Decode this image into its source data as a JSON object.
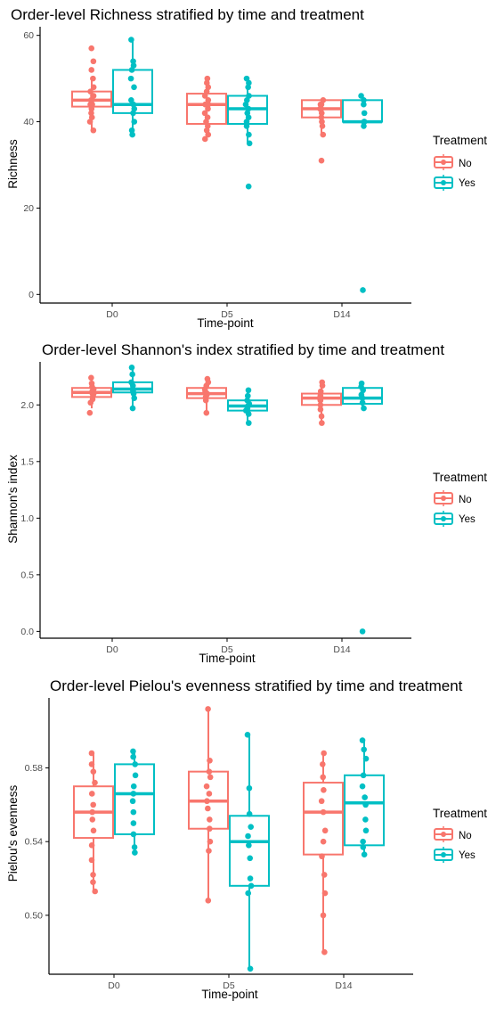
{
  "colors": {
    "No": "#f8766d",
    "Yes": "#00bfc4",
    "axis": "#000000",
    "tick_text": "#4d4d4d"
  },
  "chart_data": [
    {
      "type": "boxplot",
      "title": "Order-level Richness stratified by time and treatment",
      "xlabel": "Time-point",
      "ylabel": "Richness",
      "categories": [
        "D0",
        "D5",
        "D14"
      ],
      "ylim": [
        -2,
        62
      ],
      "yticks": [
        0,
        20,
        40,
        60
      ],
      "ytick_labels": [
        "0",
        "20",
        "40",
        "60"
      ],
      "grid": false,
      "legend": {
        "title": "Treatment",
        "entries": [
          "No",
          "Yes"
        ],
        "position": "right"
      },
      "series": [
        {
          "name": "No",
          "groups": [
            {
              "q1": 43.5,
              "median": 45,
              "q3": 47,
              "whisker_low": 38,
              "whisker_high": 50,
              "points": [
                38,
                40,
                41,
                42,
                43,
                44,
                44,
                45,
                45,
                46,
                46,
                47,
                48,
                50,
                52,
                54,
                57
              ]
            },
            {
              "q1": 39.5,
              "median": 44,
              "q3": 46.5,
              "whisker_low": 36,
              "whisker_high": 50,
              "points": [
                36,
                37,
                38,
                39,
                40,
                41,
                42,
                43,
                44,
                44,
                45,
                46,
                47,
                48,
                49,
                50
              ]
            },
            {
              "q1": 41,
              "median": 43,
              "q3": 45,
              "whisker_low": 37,
              "whisker_high": 45,
              "points": [
                31,
                37,
                39,
                40,
                41,
                42,
                43,
                43,
                44,
                44,
                45
              ]
            }
          ]
        },
        {
          "name": "Yes",
          "groups": [
            {
              "q1": 42,
              "median": 44,
              "q3": 52,
              "whisker_low": 37,
              "whisker_high": 59,
              "points": [
                37,
                38,
                40,
                42,
                43,
                44,
                45,
                48,
                50,
                52,
                53,
                54,
                59
              ]
            },
            {
              "q1": 39.5,
              "median": 43,
              "q3": 46,
              "whisker_low": 35,
              "whisker_high": 50,
              "points": [
                25,
                35,
                37,
                39,
                40,
                41,
                42,
                43,
                44,
                45,
                46,
                48,
                49,
                50
              ]
            },
            {
              "q1": 40,
              "median": 40,
              "q3": 45,
              "whisker_low": 39,
              "whisker_high": 46,
              "points": [
                1,
                39,
                40,
                40,
                42,
                44,
                45,
                46
              ]
            }
          ]
        }
      ]
    },
    {
      "type": "boxplot",
      "title": "Order-level Shannon's index stratified by time and treatment",
      "xlabel": "Time-point",
      "ylabel": "Shannon's index",
      "categories": [
        "D0",
        "D5",
        "D14"
      ],
      "ylim": [
        -0.06,
        2.38
      ],
      "yticks": [
        0,
        0.5,
        1.0,
        1.5,
        2.0
      ],
      "ytick_labels": [
        "0.0",
        "0.5",
        "1.0",
        "1.5",
        "2.0"
      ],
      "grid": false,
      "legend": {
        "title": "Treatment",
        "entries": [
          "No",
          "Yes"
        ],
        "position": "right"
      },
      "series": [
        {
          "name": "No",
          "groups": [
            {
              "q1": 2.07,
              "median": 2.11,
              "q3": 2.15,
              "whisker_low": 1.97,
              "whisker_high": 2.24,
              "points": [
                1.93,
                2.02,
                2.05,
                2.08,
                2.1,
                2.11,
                2.12,
                2.14,
                2.16,
                2.19,
                2.24
              ]
            },
            {
              "q1": 2.06,
              "median": 2.1,
              "q3": 2.15,
              "whisker_low": 1.93,
              "whisker_high": 2.23,
              "points": [
                1.93,
                2.04,
                2.07,
                2.09,
                2.1,
                2.12,
                2.14,
                2.17,
                2.2,
                2.23
              ]
            },
            {
              "q1": 2.0,
              "median": 2.06,
              "q3": 2.1,
              "whisker_low": 1.84,
              "whisker_high": 2.2,
              "points": [
                1.84,
                1.9,
                1.96,
                2.0,
                2.04,
                2.06,
                2.08,
                2.12,
                2.17,
                2.2
              ]
            }
          ]
        },
        {
          "name": "Yes",
          "groups": [
            {
              "q1": 2.11,
              "median": 2.14,
              "q3": 2.2,
              "whisker_low": 1.97,
              "whisker_high": 2.33,
              "points": [
                1.97,
                2.06,
                2.1,
                2.12,
                2.14,
                2.17,
                2.2,
                2.27,
                2.33
              ]
            },
            {
              "q1": 1.95,
              "median": 1.99,
              "q3": 2.04,
              "whisker_low": 1.84,
              "whisker_high": 2.13,
              "points": [
                1.84,
                1.92,
                1.95,
                1.97,
                1.99,
                2.01,
                2.04,
                2.08,
                2.13
              ]
            },
            {
              "q1": 2.01,
              "median": 2.06,
              "q3": 2.15,
              "whisker_low": 1.97,
              "whisker_high": 2.19,
              "points": [
                0.0,
                1.97,
                2.02,
                2.06,
                2.09,
                2.13,
                2.16,
                2.19
              ]
            }
          ]
        }
      ]
    },
    {
      "type": "boxplot",
      "title": "Order-level Pielou's evenness stratified by time and treatment",
      "xlabel": "Time-point",
      "ylabel": "Pielou's evenness",
      "categories": [
        "D0",
        "D5",
        "D14"
      ],
      "ylim": [
        0.468,
        0.618
      ],
      "yticks": [
        0.5,
        0.54,
        0.58
      ],
      "ytick_labels": [
        "0.50",
        "0.54",
        "0.58"
      ],
      "grid": false,
      "legend": {
        "title": "Treatment",
        "entries": [
          "No",
          "Yes"
        ],
        "position": "right"
      },
      "series": [
        {
          "name": "No",
          "groups": [
            {
              "q1": 0.542,
              "median": 0.556,
              "q3": 0.57,
              "whisker_low": 0.513,
              "whisker_high": 0.588,
              "points": [
                0.513,
                0.518,
                0.522,
                0.53,
                0.538,
                0.546,
                0.552,
                0.556,
                0.56,
                0.566,
                0.572,
                0.578,
                0.582,
                0.588
              ]
            },
            {
              "q1": 0.547,
              "median": 0.562,
              "q3": 0.578,
              "whisker_low": 0.508,
              "whisker_high": 0.612,
              "points": [
                0.508,
                0.535,
                0.54,
                0.547,
                0.552,
                0.558,
                0.562,
                0.566,
                0.57,
                0.575,
                0.578,
                0.584,
                0.612
              ]
            },
            {
              "q1": 0.533,
              "median": 0.556,
              "q3": 0.572,
              "whisker_low": 0.48,
              "whisker_high": 0.588,
              "points": [
                0.48,
                0.5,
                0.512,
                0.522,
                0.532,
                0.54,
                0.546,
                0.556,
                0.562,
                0.568,
                0.575,
                0.582,
                0.588
              ]
            }
          ]
        },
        {
          "name": "Yes",
          "groups": [
            {
              "q1": 0.544,
              "median": 0.566,
              "q3": 0.582,
              "whisker_low": 0.534,
              "whisker_high": 0.589,
              "points": [
                0.534,
                0.537,
                0.544,
                0.55,
                0.556,
                0.562,
                0.566,
                0.57,
                0.576,
                0.582,
                0.586,
                0.589
              ]
            },
            {
              "q1": 0.516,
              "median": 0.54,
              "q3": 0.554,
              "whisker_low": 0.471,
              "whisker_high": 0.598,
              "points": [
                0.471,
                0.512,
                0.516,
                0.52,
                0.531,
                0.538,
                0.543,
                0.548,
                0.555,
                0.569,
                0.598
              ]
            },
            {
              "q1": 0.538,
              "median": 0.561,
              "q3": 0.576,
              "whisker_low": 0.533,
              "whisker_high": 0.595,
              "points": [
                0.533,
                0.537,
                0.54,
                0.546,
                0.552,
                0.56,
                0.564,
                0.57,
                0.576,
                0.585,
                0.59,
                0.595
              ]
            }
          ]
        }
      ]
    }
  ]
}
